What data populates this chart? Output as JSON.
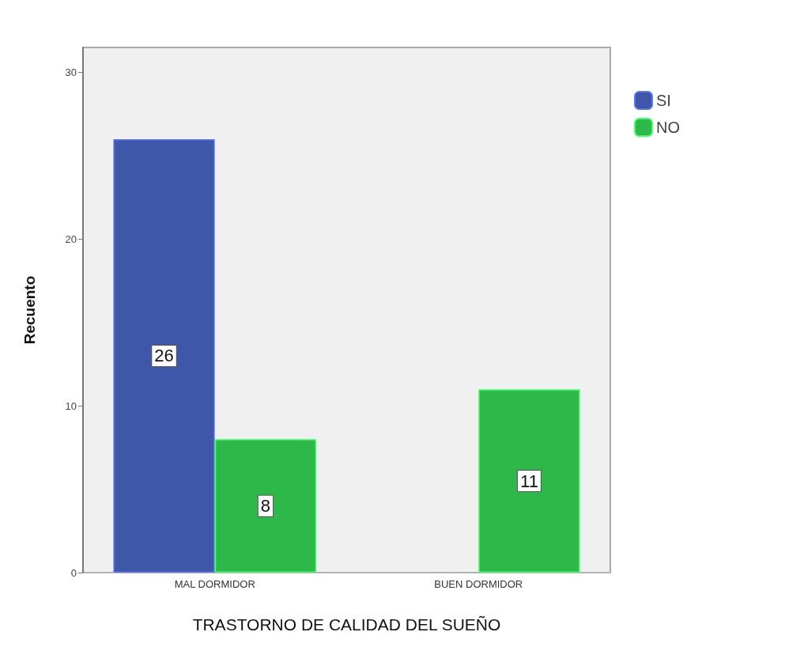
{
  "chart_data": {
    "type": "bar",
    "xlabel": "TRASTORNO DE CALIDAD DEL SUEÑO",
    "ylabel": "Recuento",
    "categories": [
      "MAL DORMIDOR",
      "BUEN DORMIDOR"
    ],
    "series": [
      {
        "name": "SI",
        "color": "#3f57a8",
        "values": [
          26,
          null
        ]
      },
      {
        "name": "NO",
        "color": "#2fb84a",
        "values": [
          8,
          11
        ]
      }
    ],
    "ylim": [
      0,
      31.5
    ],
    "yticks": [
      0,
      10,
      20,
      30
    ],
    "grid": false,
    "legend": "top right",
    "data_labels": true
  }
}
